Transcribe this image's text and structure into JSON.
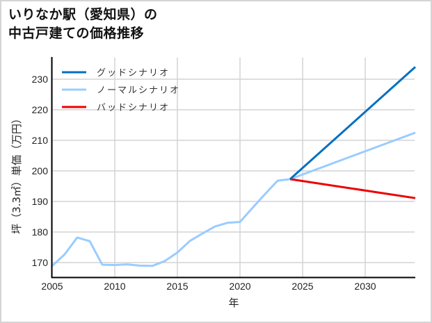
{
  "title": {
    "line1": "いりなか駅（愛知県）の",
    "line2": "中古戸建ての価格推移"
  },
  "chart_data": {
    "type": "line",
    "title": "いりなか駅（愛知県）の中古戸建ての価格推移",
    "xlabel": "年",
    "ylabel": "坪（3.3㎡）単価（万円）",
    "xlim": [
      2005,
      2034
    ],
    "ylim": [
      165.3,
      237.5
    ],
    "xticks": [
      2005,
      2010,
      2015,
      2020,
      2025,
      2030
    ],
    "yticks": [
      170,
      180,
      190,
      200,
      210,
      220,
      230
    ],
    "grid": true,
    "legend_position": "upper left",
    "series": [
      {
        "name": "グッドシナリオ",
        "color": "#0070c0",
        "x": [
          2024,
          2034
        ],
        "values": [
          197.3,
          234.0
        ]
      },
      {
        "name": "ノーマルシナリオ",
        "color": "#99ccff",
        "x": [
          2005,
          2006,
          2007,
          2008,
          2009,
          2010,
          2011,
          2012,
          2013,
          2014,
          2015,
          2016,
          2017,
          2018,
          2019,
          2020,
          2021,
          2022,
          2023,
          2024,
          2034
        ],
        "values": [
          168.9,
          172.7,
          178.2,
          177.0,
          169.3,
          169.2,
          169.4,
          169.0,
          168.9,
          170.5,
          173.3,
          177.1,
          179.5,
          181.8,
          183.0,
          183.3,
          187.9,
          192.4,
          196.8,
          197.3,
          212.5
        ]
      },
      {
        "name": "バッドシナリオ",
        "color": "#ee0000",
        "x": [
          2024,
          2034
        ],
        "values": [
          197.3,
          191.1
        ]
      }
    ]
  },
  "axes": {
    "xlabel": "年",
    "ylabel": "坪（3.3㎡）単価（万円）",
    "xtick_labels": [
      "2005",
      "2010",
      "2015",
      "2020",
      "2025",
      "2030"
    ],
    "ytick_labels": [
      "170",
      "180",
      "190",
      "200",
      "210",
      "220",
      "230"
    ]
  },
  "legend": [
    {
      "label": "グッドシナリオ",
      "color": "#0070c0"
    },
    {
      "label": "ノーマルシナリオ",
      "color": "#99ccff"
    },
    {
      "label": "バッドシナリオ",
      "color": "#ee0000"
    }
  ]
}
